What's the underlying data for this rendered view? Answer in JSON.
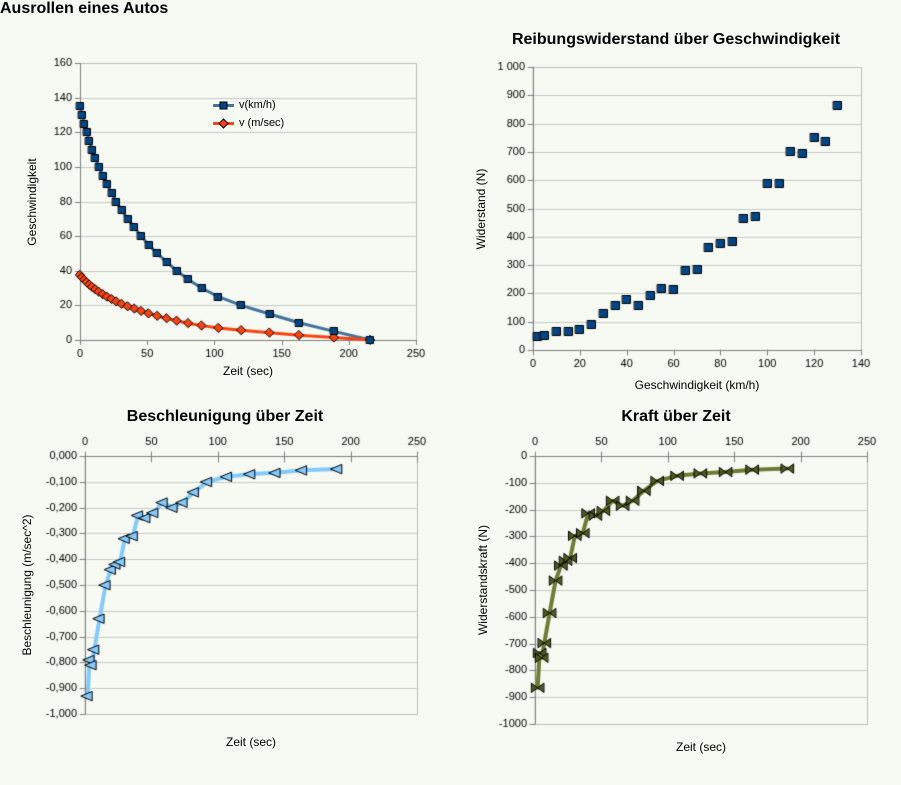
{
  "colors": {
    "background": "#F6FAF3",
    "grid": "#C9C9C9",
    "plot_border": "#BDBDBD",
    "axis": "#808080",
    "text": "#000000"
  },
  "chart_data": [
    {
      "id": "ausrollen",
      "type": "line",
      "title": "Ausrollen eines Autos",
      "xlabel": "Zeit (sec)",
      "ylabel": "Geschwindigkeit",
      "xlim": [
        0,
        250
      ],
      "ylim": [
        0,
        160
      ],
      "x_axis_position": "bottom",
      "grid": "horizontal",
      "legend": {
        "visible": true,
        "position": "inside-top-center"
      },
      "x_ticks": {
        "values": [
          0,
          50,
          100,
          150,
          200,
          250
        ],
        "labels": [
          "0",
          "50",
          "100",
          "150",
          "200",
          "250"
        ]
      },
      "y_ticks": {
        "values": [
          0,
          20,
          40,
          60,
          80,
          100,
          120,
          140,
          160
        ],
        "labels": [
          "0",
          "20",
          "40",
          "60",
          "80",
          "100",
          "120",
          "140",
          "160"
        ]
      },
      "series": [
        {
          "name": "v(km/h)",
          "marker": "square",
          "marker_color": "#004586",
          "line_color": "#41719C",
          "x": [
            0,
            1.5,
            3.3,
            5,
            7,
            9,
            11.5,
            14,
            17,
            20,
            23.5,
            27,
            31,
            35.5,
            40.5,
            45.5,
            51,
            57.5,
            64.5,
            72,
            80.5,
            90.5,
            103,
            120,
            141,
            163,
            189,
            216
          ],
          "y": [
            135,
            130,
            125,
            120,
            115,
            110,
            105,
            100,
            95,
            90,
            85,
            80,
            75,
            70,
            65,
            60,
            55,
            50,
            45,
            40,
            35,
            30,
            25,
            20,
            15,
            10,
            5,
            0
          ]
        },
        {
          "name": "v (m/sec)",
          "marker": "diamond",
          "marker_color": "#FF420E",
          "line_color": "#FF420E",
          "x": [
            0,
            1.5,
            3.3,
            5,
            7,
            9,
            11.5,
            14,
            17,
            20,
            23.5,
            27,
            31,
            35.5,
            40.5,
            45.5,
            51,
            57.5,
            64.5,
            72,
            80.5,
            90.5,
            103,
            120,
            141,
            163,
            189,
            216
          ],
          "y": [
            37.5,
            36.1,
            34.7,
            33.3,
            31.9,
            30.6,
            29.2,
            27.8,
            26.4,
            25,
            23.6,
            22.2,
            20.8,
            19.4,
            18.1,
            16.7,
            15.3,
            13.9,
            12.5,
            11.1,
            9.7,
            8.3,
            6.9,
            5.6,
            4.2,
            2.8,
            1.4,
            0
          ]
        }
      ]
    },
    {
      "id": "reibungswiderstand",
      "type": "scatter",
      "title": "Reibungswiderstand über Geschwindigkeit",
      "xlabel": "Geschwindigkeit (km/h)",
      "ylabel": "Widerstand (N)",
      "xlim": [
        0,
        140
      ],
      "ylim": [
        0,
        1000
      ],
      "x_axis_position": "bottom",
      "grid": "horizontal",
      "legend": {
        "visible": false
      },
      "x_ticks": {
        "values": [
          0,
          20,
          40,
          60,
          80,
          100,
          120,
          140
        ],
        "labels": [
          "0",
          "20",
          "40",
          "60",
          "80",
          "100",
          "120",
          "140"
        ]
      },
      "y_ticks": {
        "values": [
          0,
          100,
          200,
          300,
          400,
          500,
          600,
          700,
          800,
          900,
          1000
        ],
        "labels": [
          "0",
          "100",
          "200",
          "300",
          "400",
          "500",
          "600",
          "700",
          "800",
          "900",
          "1 000"
        ]
      },
      "series": [
        {
          "marker": "square",
          "marker_color": "#004586",
          "line_color": null,
          "x": [
            2,
            5,
            10,
            15,
            20,
            25,
            30,
            35,
            40,
            45,
            50,
            55,
            60,
            65,
            70,
            75,
            80,
            85,
            90,
            95,
            100,
            105,
            110,
            115,
            120,
            125,
            130
          ],
          "y": [
            48,
            52,
            65,
            65,
            72,
            90,
            128,
            158,
            178,
            157,
            193,
            217,
            213,
            280,
            285,
            362,
            377,
            382,
            463,
            472,
            590,
            588,
            700,
            696,
            750,
            735,
            865
          ]
        }
      ]
    },
    {
      "id": "beschleunigung",
      "type": "line",
      "title": "Beschleunigung über Zeit",
      "xlabel": "Zeit (sec)",
      "ylabel": "Beschleunigung (m/sec^2)",
      "xlim": [
        0,
        250
      ],
      "ylim": [
        -1,
        0
      ],
      "x_axis_position": "top",
      "grid": "horizontal",
      "legend": {
        "visible": false
      },
      "x_ticks": {
        "values": [
          0,
          50,
          100,
          150,
          200,
          250
        ],
        "labels": [
          "0",
          "50",
          "100",
          "150",
          "200",
          "250"
        ]
      },
      "y_ticks": {
        "values": [
          0,
          -0.1,
          -0.2,
          -0.3,
          -0.4,
          -0.5,
          -0.6,
          -0.7,
          -0.8,
          -0.9,
          -1
        ],
        "labels": [
          "0,000",
          "-0,100",
          "-0,200",
          "-0,300",
          "-0,400",
          "-0,500",
          "-0,600",
          "-0,700",
          "-0,800",
          "-0,900",
          "-1,000"
        ]
      },
      "series": [
        {
          "marker": "triangle-left",
          "marker_color": "#83CAFF",
          "line_color": "#83CAFF",
          "x": [
            2,
            3.5,
            5,
            7,
            11,
            15.5,
            19.5,
            23,
            26.5,
            30,
            36,
            40,
            45.5,
            51.5,
            58.5,
            66,
            73.5,
            82,
            92,
            107,
            124.5,
            143.5,
            163.5,
            190
          ],
          "y": [
            -0.93,
            -0.79,
            -0.81,
            -0.75,
            -0.63,
            -0.5,
            -0.44,
            -0.42,
            -0.41,
            -0.32,
            -0.31,
            -0.23,
            -0.24,
            -0.22,
            -0.18,
            -0.2,
            -0.18,
            -0.14,
            -0.1,
            -0.08,
            -0.07,
            -0.065,
            -0.055,
            -0.05
          ]
        }
      ]
    },
    {
      "id": "kraft",
      "type": "line",
      "title": "Kraft über Zeit",
      "xlabel": "Zeit (sec)",
      "ylabel": "Widerstandskraft (N)",
      "xlim": [
        0,
        250
      ],
      "ylim": [
        -1000,
        0
      ],
      "x_axis_position": "top",
      "grid": "horizontal",
      "legend": {
        "visible": false
      },
      "x_ticks": {
        "values": [
          0,
          50,
          100,
          150,
          200,
          250
        ],
        "labels": [
          "0",
          "50",
          "100",
          "150",
          "200",
          "250"
        ]
      },
      "y_ticks": {
        "values": [
          0,
          -100,
          -200,
          -300,
          -400,
          -500,
          -600,
          -700,
          -800,
          -900,
          -1000
        ],
        "labels": [
          "0",
          "-100",
          "-200",
          "-300",
          "-400",
          "-500",
          "-600",
          "-700",
          "-800",
          "-900",
          "-1000"
        ]
      },
      "series": [
        {
          "marker": "bowtie",
          "marker_color": "#505A1E",
          "line_color": "#6E7B33",
          "x": [
            2,
            3.5,
            5,
            7,
            11,
            15.5,
            19.5,
            23,
            26.5,
            30,
            36,
            40,
            45.5,
            51.5,
            58.5,
            66,
            73.5,
            82,
            92,
            107,
            124.5,
            143.5,
            163.5,
            190
          ],
          "y": [
            -865,
            -735,
            -753,
            -698,
            -586,
            -465,
            -409,
            -391,
            -381,
            -298,
            -288,
            -214,
            -223,
            -205,
            -167,
            -186,
            -167,
            -130,
            -93,
            -74,
            -65,
            -60,
            -51,
            -47
          ]
        }
      ]
    }
  ]
}
